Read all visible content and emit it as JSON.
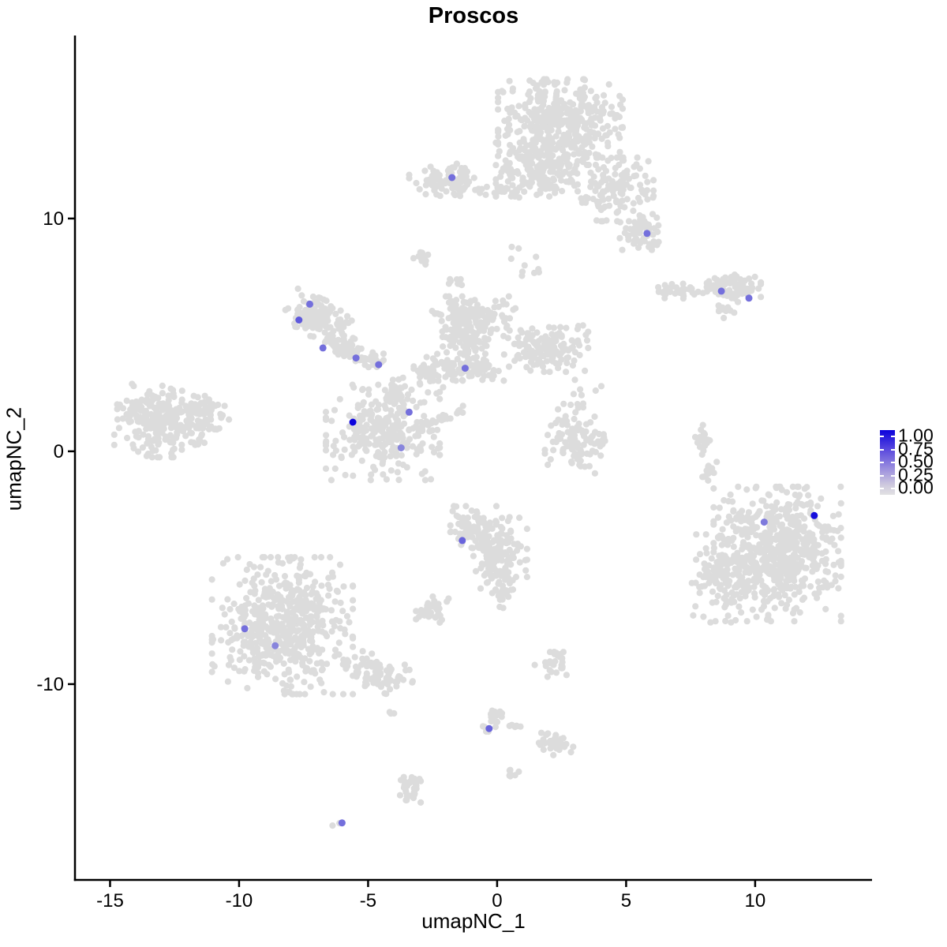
{
  "title": "Proscos",
  "axes": {
    "x_label": "umapNC_1",
    "y_label": "umapNC_2"
  },
  "legend": {
    "tick_labels": [
      "1.00",
      "0.75",
      "0.50",
      "0.25",
      "0.00"
    ],
    "tick_values": [
      1.0,
      0.75,
      0.5,
      0.25,
      0.0
    ],
    "high_color": "#0b02dc",
    "low_color": "#e1e1e3"
  },
  "colors": {
    "background_point": "#dcdcdc",
    "feature_low": "#dcdcdc",
    "feature_high": "#0b02dc",
    "axis": "#000000"
  },
  "chart_data": {
    "type": "scatter",
    "title": "Proscos",
    "xlabel": "umapNC_1",
    "ylabel": "umapNC_2",
    "xlim": [
      -16.36,
      14.53
    ],
    "ylim": [
      -18.41,
      17.86
    ],
    "xticks": [
      -15,
      -10,
      -5,
      0,
      5,
      10
    ],
    "yticks": [
      -10,
      0,
      10
    ],
    "grid": false,
    "legend_position": "right",
    "colorbar": {
      "range": [
        0,
        1
      ],
      "ticks": [
        0.0,
        0.25,
        0.5,
        0.75,
        1.0
      ]
    },
    "background_clusters": [
      {
        "cx": 2.45,
        "cy": 14.14,
        "rx": 2.3,
        "ry": 1.75,
        "n": 420,
        "angle": 0
      },
      {
        "cx": 1.53,
        "cy": 12.1,
        "rx": 1.5,
        "ry": 1.1,
        "n": 170,
        "angle": 0
      },
      {
        "cx": 4.59,
        "cy": 11.25,
        "rx": 1.4,
        "ry": 1.3,
        "n": 130,
        "angle": 0
      },
      {
        "cx": 5.57,
        "cy": 9.49,
        "rx": 0.8,
        "ry": 0.8,
        "n": 60,
        "angle": 0
      },
      {
        "cx": -1.99,
        "cy": 11.66,
        "rx": 1.35,
        "ry": 0.66,
        "n": 90,
        "angle": 0
      },
      {
        "cx": 0.15,
        "cy": 11.22,
        "rx": 1.0,
        "ry": 0.3,
        "n": 22,
        "angle": 0
      },
      {
        "cx": -3.0,
        "cy": 8.31,
        "rx": 0.38,
        "ry": 0.27,
        "n": 12,
        "angle": 0
      },
      {
        "cx": 0.92,
        "cy": 8.03,
        "rx": 1.0,
        "ry": 0.8,
        "n": 10,
        "angle": 0
      },
      {
        "cx": -1.68,
        "cy": 7.25,
        "rx": 0.6,
        "ry": 0.3,
        "n": 8,
        "angle": 0
      },
      {
        "cx": 9.17,
        "cy": 7.02,
        "rx": 1.0,
        "ry": 0.62,
        "n": 90,
        "angle": 0
      },
      {
        "cx": 7.19,
        "cy": 6.88,
        "rx": 0.9,
        "ry": 0.3,
        "n": 35,
        "angle": 0
      },
      {
        "cx": 8.81,
        "cy": 5.97,
        "rx": 0.4,
        "ry": 0.3,
        "n": 12,
        "angle": -40
      },
      {
        "cx": -13.0,
        "cy": 1.32,
        "rx": 1.75,
        "ry": 1.5,
        "n": 260,
        "angle": 0
      },
      {
        "cx": -11.16,
        "cy": 1.59,
        "rx": 0.75,
        "ry": 0.75,
        "n": 50,
        "angle": 0
      },
      {
        "cx": -6.97,
        "cy": 5.73,
        "rx": 1.2,
        "ry": 0.78,
        "n": 130,
        "angle": -25
      },
      {
        "cx": -5.9,
        "cy": 4.44,
        "rx": 0.75,
        "ry": 0.5,
        "n": 55,
        "angle": -30
      },
      {
        "cx": -4.98,
        "cy": 3.93,
        "rx": 0.55,
        "ry": 0.3,
        "n": 25,
        "angle": 0
      },
      {
        "cx": -3.82,
        "cy": 2.71,
        "rx": 0.5,
        "ry": 0.55,
        "n": 28,
        "angle": 0
      },
      {
        "cx": -0.92,
        "cy": 5.76,
        "rx": 1.55,
        "ry": 0.85,
        "n": 140,
        "angle": 0
      },
      {
        "cx": -1.16,
        "cy": 4.75,
        "rx": 0.9,
        "ry": 0.75,
        "n": 75,
        "angle": 0
      },
      {
        "cx": 1.9,
        "cy": 4.41,
        "rx": 1.55,
        "ry": 0.95,
        "n": 150,
        "angle": 0
      },
      {
        "cx": -1.22,
        "cy": 3.56,
        "rx": 1.6,
        "ry": 0.5,
        "n": 90,
        "angle": 0
      },
      {
        "cx": -2.6,
        "cy": 3.46,
        "rx": 0.6,
        "ry": 0.75,
        "n": 35,
        "angle": 0
      },
      {
        "cx": -4.43,
        "cy": 0.81,
        "rx": 2.1,
        "ry": 1.95,
        "n": 270,
        "angle": 0
      },
      {
        "cx": -2.14,
        "cy": 1.42,
        "rx": 1.1,
        "ry": 0.16,
        "n": 30,
        "angle": 28
      },
      {
        "cx": 3.06,
        "cy": 0.47,
        "rx": 1.15,
        "ry": 1.35,
        "n": 105,
        "angle": 0
      },
      {
        "cx": 8.04,
        "cy": 0.51,
        "rx": 0.35,
        "ry": 0.62,
        "n": 22,
        "angle": 0
      },
      {
        "cx": 8.26,
        "cy": -0.98,
        "rx": 0.3,
        "ry": 0.5,
        "n": 14,
        "angle": 0
      },
      {
        "cx": 10.86,
        "cy": -4.41,
        "rx": 2.35,
        "ry": 2.75,
        "n": 650,
        "angle": 0
      },
      {
        "cx": 8.65,
        "cy": -5.46,
        "rx": 1.05,
        "ry": 1.8,
        "n": 110,
        "angle": 0
      },
      {
        "cx": -0.92,
        "cy": -3.25,
        "rx": 0.85,
        "ry": 0.85,
        "n": 90,
        "angle": 0
      },
      {
        "cx": 0.06,
        "cy": -4.41,
        "rx": 1.05,
        "ry": 1.6,
        "n": 150,
        "angle": 0
      },
      {
        "cx": 0.31,
        "cy": -6.2,
        "rx": 0.3,
        "ry": 0.5,
        "n": 15,
        "angle": 0
      },
      {
        "cx": -8.32,
        "cy": -7.49,
        "rx": 2.6,
        "ry": 2.8,
        "n": 520,
        "angle": 0
      },
      {
        "cx": -4.65,
        "cy": -9.53,
        "rx": 1.35,
        "ry": 0.7,
        "n": 85,
        "angle": -18
      },
      {
        "cx": -2.51,
        "cy": -6.78,
        "rx": 0.6,
        "ry": 0.55,
        "n": 35,
        "angle": 0
      },
      {
        "cx": 2.14,
        "cy": -9.25,
        "rx": 0.65,
        "ry": 0.6,
        "n": 28,
        "angle": 0
      },
      {
        "cx": -4.07,
        "cy": -11.25,
        "rx": 0.3,
        "ry": 0.1,
        "n": 3,
        "angle": 0
      },
      {
        "cx": -0.18,
        "cy": -11.46,
        "rx": 0.35,
        "ry": 0.55,
        "n": 22,
        "angle": 0
      },
      {
        "cx": 0.76,
        "cy": -11.8,
        "rx": 0.35,
        "ry": 0.12,
        "n": 6,
        "angle": 0
      },
      {
        "cx": 2.14,
        "cy": -12.51,
        "rx": 0.8,
        "ry": 0.45,
        "n": 38,
        "angle": -25
      },
      {
        "cx": -3.36,
        "cy": -14.41,
        "rx": 0.38,
        "ry": 0.85,
        "n": 32,
        "angle": 0
      },
      {
        "cx": 0.61,
        "cy": -13.86,
        "rx": 0.22,
        "ry": 0.25,
        "n": 8,
        "angle": 0
      },
      {
        "cx": -6.24,
        "cy": -16.07,
        "rx": 0.18,
        "ry": 0.12,
        "n": 2,
        "angle": 0
      },
      {
        "cx": 3.2,
        "cy": 2.44,
        "rx": 0.8,
        "ry": 0.7,
        "n": 10,
        "angle": 0
      }
    ],
    "highlighted_points": [
      {
        "x": -1.75,
        "y": 11.76,
        "value": 0.5
      },
      {
        "x": 5.81,
        "y": 9.36,
        "value": 0.5
      },
      {
        "x": 8.69,
        "y": 6.88,
        "value": 0.5
      },
      {
        "x": 9.76,
        "y": 6.58,
        "value": 0.5
      },
      {
        "x": -7.26,
        "y": 6.32,
        "value": 0.5
      },
      {
        "x": -7.68,
        "y": 5.64,
        "value": 0.6
      },
      {
        "x": -6.75,
        "y": 4.44,
        "value": 0.5
      },
      {
        "x": -5.47,
        "y": 4.01,
        "value": 0.5
      },
      {
        "x": -4.59,
        "y": 3.72,
        "value": 0.5
      },
      {
        "x": -1.24,
        "y": 3.57,
        "value": 0.5
      },
      {
        "x": -5.59,
        "y": 1.25,
        "value": 1.0
      },
      {
        "x": -3.41,
        "y": 1.68,
        "value": 0.5
      },
      {
        "x": -3.72,
        "y": 0.15,
        "value": 0.4
      },
      {
        "x": 10.35,
        "y": -3.04,
        "value": 0.45
      },
      {
        "x": 12.29,
        "y": -2.76,
        "value": 0.95
      },
      {
        "x": -1.35,
        "y": -3.83,
        "value": 0.55
      },
      {
        "x": -9.78,
        "y": -7.62,
        "value": 0.5
      },
      {
        "x": -8.6,
        "y": -8.35,
        "value": 0.4
      },
      {
        "x": -0.31,
        "y": -11.91,
        "value": 0.55
      },
      {
        "x": -6.01,
        "y": -15.96,
        "value": 0.5
      }
    ]
  }
}
